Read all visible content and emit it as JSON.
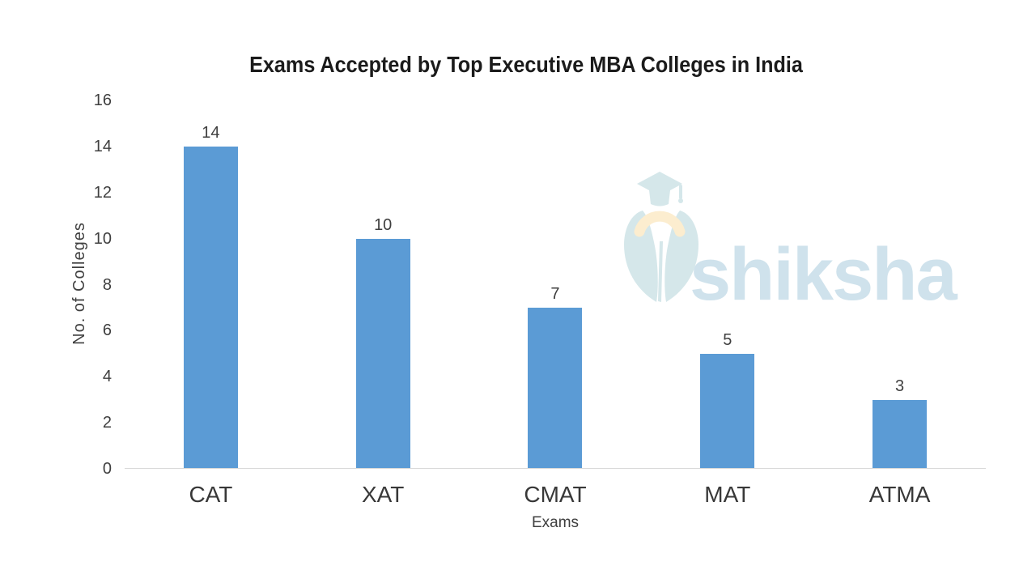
{
  "title": "Exams Accepted by Top Executive MBA Colleges in India",
  "watermark": {
    "brand": "shiksha",
    "icon": "graduation-cap-swan-icon",
    "icon_color": "#d5e7ea",
    "crescent_color": "#fcedcf",
    "text_color": "#cfe2ec"
  },
  "chart_data": {
    "type": "bar",
    "title": "Exams Accepted by Top Executive MBA Colleges in India",
    "categories": [
      "CAT",
      "XAT",
      "CMAT",
      "MAT",
      "ATMA"
    ],
    "values": [
      14,
      10,
      7,
      5,
      3
    ],
    "xlabel": "Exams",
    "ylabel": "No. of Colleges",
    "ylim": [
      0,
      16
    ],
    "yticks": [
      0,
      2,
      4,
      6,
      8,
      10,
      12,
      14,
      16
    ],
    "bar_color": "#5b9bd5",
    "axis_line_color": "#d9d9d9",
    "text_color": "#3f3f3f",
    "grid": false,
    "legend": false,
    "data_labels": true,
    "background": "#ffffff"
  }
}
